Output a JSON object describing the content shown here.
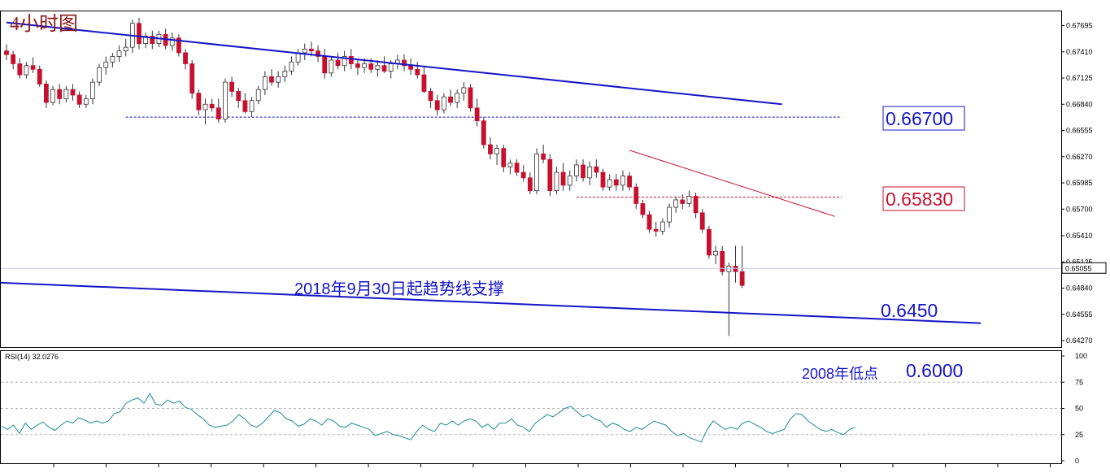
{
  "chart_data": {
    "type": "candlestick",
    "title": "4小时图",
    "price_axis": {
      "ticks": [
        "0.67695",
        "0.67410",
        "0.67125",
        "0.66840",
        "0.66555",
        "0.66270",
        "0.65985",
        "0.65700",
        "0.65410",
        "0.65125",
        "0.64840",
        "0.64555",
        "0.64270"
      ],
      "ylim": [
        0.642,
        0.6785
      ],
      "current_price": "0.65055",
      "current_value": 0.65055
    },
    "candles": [
      [
        0.6742,
        0.6749,
        0.6732,
        0.6738
      ],
      [
        0.6738,
        0.6742,
        0.6722,
        0.6728
      ],
      [
        0.6728,
        0.6734,
        0.6712,
        0.6716
      ],
      [
        0.6716,
        0.673,
        0.6712,
        0.6726
      ],
      [
        0.6726,
        0.6735,
        0.6718,
        0.6722
      ],
      [
        0.6722,
        0.6726,
        0.6703,
        0.6706
      ],
      [
        0.6706,
        0.671,
        0.668,
        0.6686
      ],
      [
        0.6686,
        0.6704,
        0.6683,
        0.67
      ],
      [
        0.67,
        0.6706,
        0.6684,
        0.669
      ],
      [
        0.669,
        0.6704,
        0.6686,
        0.67
      ],
      [
        0.67,
        0.6706,
        0.6688,
        0.6694
      ],
      [
        0.6694,
        0.6698,
        0.668,
        0.6684
      ],
      [
        0.6684,
        0.6694,
        0.668,
        0.669
      ],
      [
        0.669,
        0.6712,
        0.6684,
        0.6708
      ],
      [
        0.6708,
        0.6728,
        0.6704,
        0.6724
      ],
      [
        0.6724,
        0.6736,
        0.6716,
        0.673
      ],
      [
        0.673,
        0.674,
        0.6724,
        0.6736
      ],
      [
        0.6736,
        0.6748,
        0.673,
        0.6742
      ],
      [
        0.6742,
        0.6755,
        0.6736,
        0.6746
      ],
      [
        0.6746,
        0.6776,
        0.674,
        0.6772
      ],
      [
        0.6772,
        0.6778,
        0.6744,
        0.675
      ],
      [
        0.675,
        0.6762,
        0.6745,
        0.6758
      ],
      [
        0.6758,
        0.6764,
        0.6744,
        0.675
      ],
      [
        0.675,
        0.6764,
        0.6746,
        0.676
      ],
      [
        0.676,
        0.6766,
        0.6744,
        0.6748
      ],
      [
        0.6748,
        0.6762,
        0.6742,
        0.6756
      ],
      [
        0.6756,
        0.676,
        0.6736,
        0.674
      ],
      [
        0.674,
        0.6744,
        0.6722,
        0.6728
      ],
      [
        0.6728,
        0.6732,
        0.669,
        0.6696
      ],
      [
        0.6696,
        0.67,
        0.6672,
        0.6678
      ],
      [
        0.6678,
        0.669,
        0.6662,
        0.6684
      ],
      [
        0.6684,
        0.669,
        0.6676,
        0.668
      ],
      [
        0.668,
        0.669,
        0.6664,
        0.6668
      ],
      [
        0.6668,
        0.6712,
        0.6664,
        0.6708
      ],
      [
        0.6708,
        0.6714,
        0.6692,
        0.6698
      ],
      [
        0.6698,
        0.6702,
        0.668,
        0.6688
      ],
      [
        0.6688,
        0.6696,
        0.6674,
        0.6676
      ],
      [
        0.6676,
        0.6692,
        0.667,
        0.6688
      ],
      [
        0.6688,
        0.6704,
        0.6684,
        0.67
      ],
      [
        0.67,
        0.672,
        0.6694,
        0.6714
      ],
      [
        0.6714,
        0.6722,
        0.6704,
        0.6708
      ],
      [
        0.6708,
        0.672,
        0.6702,
        0.6714
      ],
      [
        0.6714,
        0.6726,
        0.6708,
        0.672
      ],
      [
        0.672,
        0.6736,
        0.6716,
        0.673
      ],
      [
        0.673,
        0.6744,
        0.6726,
        0.674
      ],
      [
        0.674,
        0.675,
        0.6732,
        0.6744
      ],
      [
        0.6744,
        0.6752,
        0.6736,
        0.6742
      ],
      [
        0.6742,
        0.6748,
        0.673,
        0.6736
      ],
      [
        0.6736,
        0.6744,
        0.6712,
        0.6718
      ],
      [
        0.6718,
        0.6736,
        0.6714,
        0.6732
      ],
      [
        0.6732,
        0.674,
        0.6722,
        0.6726
      ],
      [
        0.6726,
        0.6742,
        0.672,
        0.6736
      ],
      [
        0.6736,
        0.6744,
        0.6722,
        0.6728
      ],
      [
        0.6728,
        0.6734,
        0.6716,
        0.6724
      ],
      [
        0.6724,
        0.6734,
        0.6718,
        0.6728
      ],
      [
        0.6728,
        0.6734,
        0.6718,
        0.6722
      ],
      [
        0.6722,
        0.6732,
        0.6714,
        0.6726
      ],
      [
        0.6726,
        0.6736,
        0.6718,
        0.672
      ],
      [
        0.672,
        0.6732,
        0.6712,
        0.6728
      ],
      [
        0.6728,
        0.6738,
        0.6722,
        0.6732
      ],
      [
        0.6732,
        0.6738,
        0.672,
        0.6726
      ],
      [
        0.6726,
        0.6734,
        0.6716,
        0.6722
      ],
      [
        0.6722,
        0.673,
        0.6712,
        0.6716
      ],
      [
        0.6716,
        0.6724,
        0.6696,
        0.6698
      ],
      [
        0.6698,
        0.6702,
        0.668,
        0.6688
      ],
      [
        0.6688,
        0.6694,
        0.6672,
        0.6678
      ],
      [
        0.6678,
        0.6696,
        0.6674,
        0.6692
      ],
      [
        0.6692,
        0.67,
        0.6682,
        0.6686
      ],
      [
        0.6686,
        0.67,
        0.668,
        0.6696
      ],
      [
        0.6696,
        0.6708,
        0.6688,
        0.6702
      ],
      [
        0.6702,
        0.6706,
        0.6676,
        0.668
      ],
      [
        0.668,
        0.669,
        0.666,
        0.6666
      ],
      [
        0.6666,
        0.667,
        0.6636,
        0.664
      ],
      [
        0.664,
        0.6648,
        0.6624,
        0.663
      ],
      [
        0.663,
        0.664,
        0.6618,
        0.6636
      ],
      [
        0.6636,
        0.664,
        0.661,
        0.6616
      ],
      [
        0.6616,
        0.6624,
        0.6608,
        0.662
      ],
      [
        0.662,
        0.6624,
        0.6606,
        0.661
      ],
      [
        0.661,
        0.6618,
        0.66,
        0.6604
      ],
      [
        0.6604,
        0.661,
        0.6586,
        0.659
      ],
      [
        0.659,
        0.6636,
        0.6586,
        0.663
      ],
      [
        0.663,
        0.664,
        0.662,
        0.6624
      ],
      [
        0.6624,
        0.663,
        0.6584,
        0.659
      ],
      [
        0.659,
        0.6616,
        0.6586,
        0.661
      ],
      [
        0.661,
        0.662,
        0.659,
        0.6596
      ],
      [
        0.6596,
        0.6612,
        0.659,
        0.6606
      ],
      [
        0.6606,
        0.6624,
        0.66,
        0.6618
      ],
      [
        0.6618,
        0.6624,
        0.66,
        0.6604
      ],
      [
        0.6604,
        0.6622,
        0.6596,
        0.6616
      ],
      [
        0.6616,
        0.6624,
        0.6604,
        0.661
      ],
      [
        0.661,
        0.6614,
        0.659,
        0.6594
      ],
      [
        0.6594,
        0.6608,
        0.659,
        0.6602
      ],
      [
        0.6602,
        0.6608,
        0.659,
        0.6596
      ],
      [
        0.6596,
        0.6612,
        0.659,
        0.6606
      ],
      [
        0.6606,
        0.661,
        0.659,
        0.6594
      ],
      [
        0.6594,
        0.6598,
        0.657,
        0.6576
      ],
      [
        0.6576,
        0.658,
        0.656,
        0.6564
      ],
      [
        0.6564,
        0.6568,
        0.6544,
        0.6548
      ],
      [
        0.6548,
        0.6556,
        0.654,
        0.6546
      ],
      [
        0.6546,
        0.656,
        0.6542,
        0.6556
      ],
      [
        0.6556,
        0.6576,
        0.655,
        0.6572
      ],
      [
        0.6572,
        0.6584,
        0.6566,
        0.658
      ],
      [
        0.658,
        0.6586,
        0.657,
        0.6576
      ],
      [
        0.6576,
        0.659,
        0.6572,
        0.6584
      ],
      [
        0.6584,
        0.6588,
        0.656,
        0.6566
      ],
      [
        0.6566,
        0.657,
        0.6544,
        0.6548
      ],
      [
        0.6548,
        0.6552,
        0.6516,
        0.652
      ],
      [
        0.652,
        0.653,
        0.651,
        0.6524
      ],
      [
        0.6524,
        0.653,
        0.6498,
        0.6502
      ],
      [
        0.6502,
        0.6512,
        0.6432,
        0.6508
      ],
      [
        0.6508,
        0.653,
        0.649,
        0.6502
      ],
      [
        0.6502,
        0.653,
        0.6484,
        0.6487
      ]
    ],
    "trend_lines": [
      {
        "name": "upper-resistance",
        "color": "#1414c8",
        "p1": [
          0,
          0.6773
        ],
        "p2": [
          117,
          0.6684
        ]
      },
      {
        "name": "long-term-support",
        "color": "#1414c8",
        "p1": [
          -1,
          0.649
        ],
        "p2": [
          147,
          0.6446
        ]
      },
      {
        "name": "short-term-resistance",
        "color": "#c8102e",
        "p1": [
          94,
          0.6634
        ],
        "p2": [
          125,
          0.6562
        ]
      }
    ],
    "levels": [
      {
        "label": "0.66700",
        "value": 0.667,
        "color": "#1414c8",
        "from": 18,
        "to": 126
      },
      {
        "label": "0.65830",
        "value": 0.6583,
        "color": "#c8102e",
        "from": 86,
        "to": 126
      }
    ],
    "annotations": {
      "support_text": "2018年9月30日起趋势线支撑",
      "support_level": "0.6450",
      "low_2008_label": "2008年低点",
      "low_2008_value": "0.6000"
    },
    "rsi": {
      "label": "RSI(14) 32.0276",
      "ticks": [
        "100",
        "75",
        "50",
        "25",
        "0"
      ],
      "levels": [
        75,
        50,
        25
      ],
      "values": [
        33,
        30,
        34,
        26,
        36,
        30,
        34,
        37,
        32,
        29,
        34,
        38,
        36,
        41,
        39,
        36,
        38,
        36,
        38,
        45,
        47,
        55,
        58,
        60,
        55,
        64,
        54,
        53,
        58,
        55,
        57,
        51,
        49,
        44,
        40,
        34,
        32,
        33,
        34,
        38,
        44,
        40,
        34,
        32,
        36,
        42,
        48,
        46,
        40,
        38,
        33,
        35,
        40,
        38,
        34,
        40,
        38,
        33,
        32,
        36,
        34,
        32,
        30,
        24,
        26,
        28,
        25,
        24,
        22,
        20,
        28,
        34,
        30,
        28,
        36,
        34,
        38,
        34,
        38,
        40,
        38,
        32,
        35,
        30,
        36,
        36,
        40,
        34,
        32,
        28,
        36,
        40,
        44,
        42,
        46,
        50,
        52,
        47,
        42,
        44,
        40,
        38,
        32,
        36,
        34,
        30,
        28,
        32,
        30,
        34,
        38,
        36,
        34,
        28,
        24,
        26,
        22,
        20,
        18,
        30,
        38,
        34,
        30,
        32,
        30,
        36,
        38,
        35,
        32,
        28,
        26,
        28,
        30,
        40,
        45,
        44,
        38,
        34,
        30,
        28,
        30,
        27,
        25,
        30,
        32
      ],
      "ylim": [
        0,
        100
      ]
    },
    "colors": {
      "bull": "#ffffff",
      "bear": "#c8102e",
      "wick": "#333333",
      "rsi_line": "#1e8c96",
      "axis_text": "#000000",
      "title": "#8b1a1a"
    }
  }
}
